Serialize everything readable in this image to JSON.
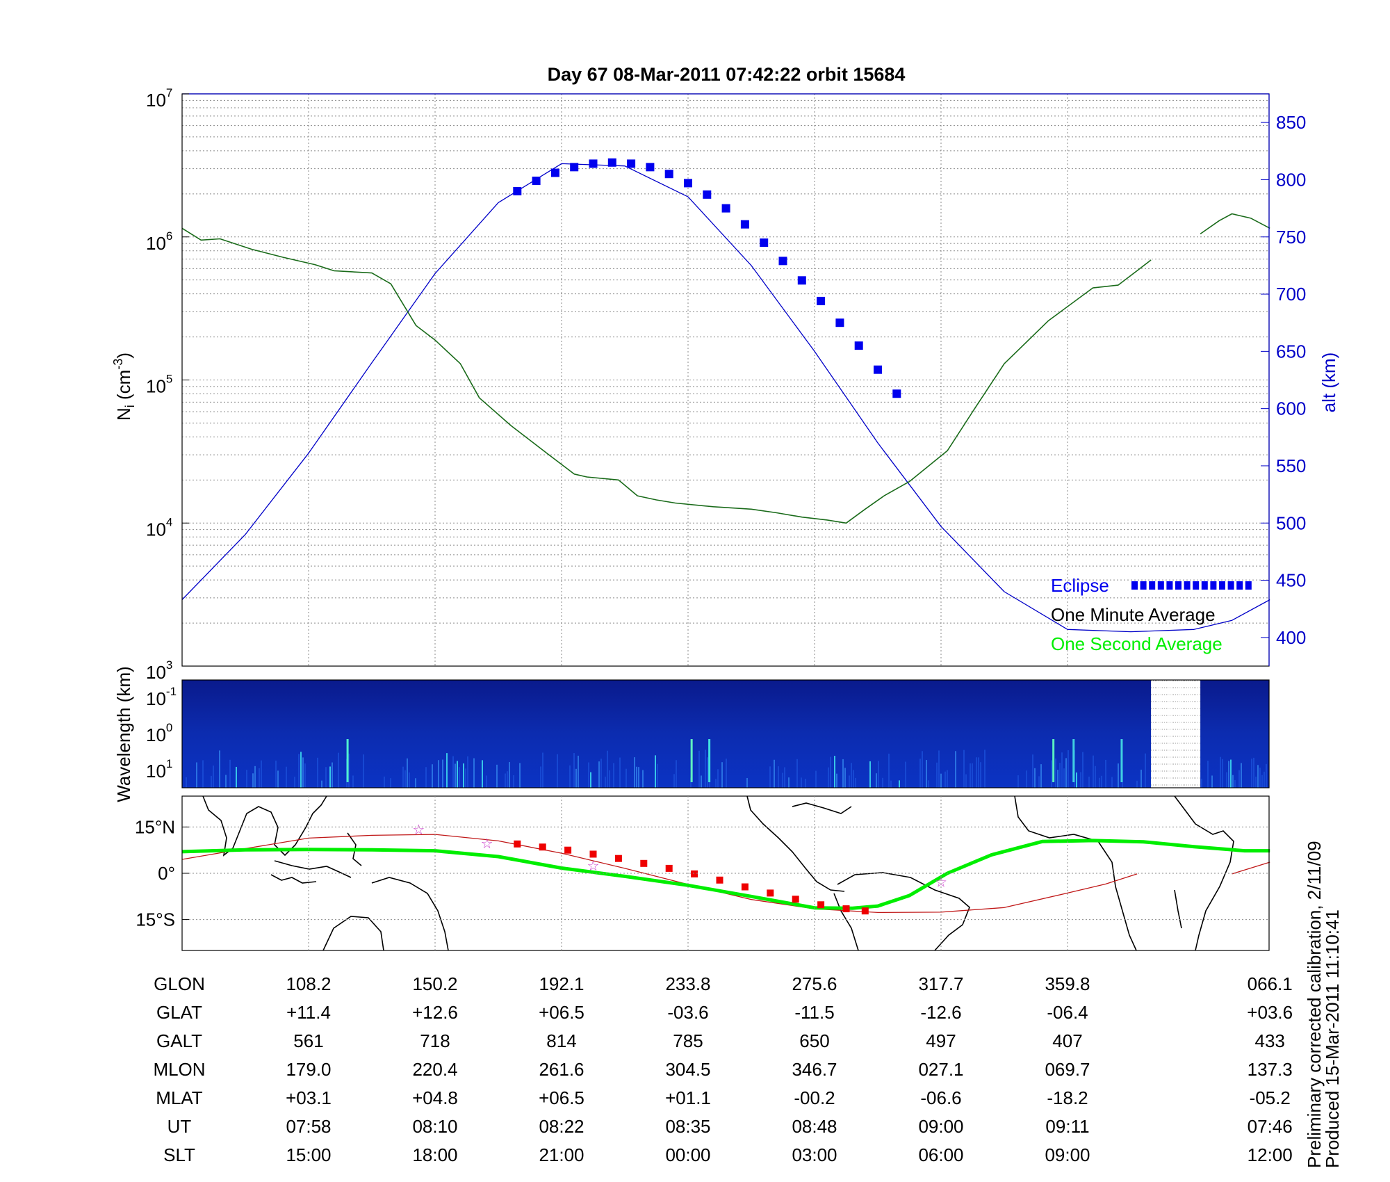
{
  "title": "Day 67  08-Mar-2011 07:42:22   orbit 15684",
  "footnote": {
    "line1": "Preliminary corrected calibration, 2/11/09",
    "line2": "Produced 15-Mar-2011 11:10:41"
  },
  "colors": {
    "density": "#1a6b1a",
    "altitude": "#0000c8",
    "eclipse": "#0000ee",
    "one_second": "#00ee00",
    "orbit_track": "#c01818",
    "map_eclipse": "#ee0000",
    "star": "#cc44cc"
  },
  "chart_data": [
    {
      "type": "line",
      "panel": "density",
      "title": "Day 67  08-Mar-2011 07:42:22   orbit 15684",
      "ylabel": "N_i (cm^-3)",
      "ylabel_main": "N",
      "ylabel_sub": "i",
      "ylabel_unit_open": " (cm",
      "ylabel_unit_exp": "-3",
      "ylabel_unit_close": ")",
      "yscale": "log",
      "ylim": [
        1000,
        10000000
      ],
      "y_ticks": [
        {
          "base": "10",
          "exp": "3",
          "value": 1000
        },
        {
          "base": "10",
          "exp": "4",
          "value": 10000
        },
        {
          "base": "10",
          "exp": "5",
          "value": 100000
        },
        {
          "base": "10",
          "exp": "6",
          "value": 1000000
        },
        {
          "base": "10",
          "exp": "7",
          "value": 10000000
        }
      ],
      "y2label": "alt (km)",
      "y2lim": [
        375,
        875
      ],
      "y2_ticks": [
        "400",
        "450",
        "500",
        "550",
        "600",
        "650",
        "700",
        "750",
        "800",
        "850"
      ],
      "grid": true,
      "xlim": [
        0,
        8.6
      ],
      "x_note": "x positions in units of the table column spacing (0 = left axis)",
      "legend": {
        "placement": "bottom-right",
        "entries": [
          {
            "label": "Eclipse",
            "style": "squares"
          },
          {
            "label": "One Minute Average",
            "style": "line"
          },
          {
            "label": "One Second Average",
            "style": "line"
          }
        ]
      },
      "series": [
        {
          "name": "One Minute Average",
          "x": [
            0,
            0.15,
            0.3,
            0.55,
            0.8,
            1.05,
            1.2,
            1.5,
            1.65,
            1.85,
            2.0,
            2.2,
            2.35,
            2.6,
            2.9,
            3.1,
            3.2,
            3.45,
            3.6,
            3.75,
            3.9,
            4.2,
            4.5,
            4.7,
            4.9,
            5.1,
            5.25,
            5.4,
            5.55,
            5.75,
            6.05,
            6.25,
            6.5,
            6.85,
            7.2,
            7.4,
            7.55,
            7.66
          ],
          "y": [
            1150000,
            950000,
            970000,
            820000,
            720000,
            640000,
            580000,
            560000,
            470000,
            240000,
            190000,
            130000,
            75000,
            48000,
            30000,
            22000,
            21000,
            20000,
            15500,
            14500,
            13800,
            13000,
            12500,
            11800,
            11000,
            10500,
            10000,
            12500,
            15500,
            19500,
            32000,
            60000,
            130000,
            260000,
            440000,
            460000,
            580000,
            690000
          ]
        },
        {
          "name": "One Minute Average (resumed)",
          "x": [
            8.05,
            8.2,
            8.3,
            8.45,
            8.6
          ],
          "y": [
            1050000,
            1300000,
            1450000,
            1350000,
            1150000
          ]
        },
        {
          "name": "Altitude",
          "axis": "y2",
          "x": [
            0,
            0.5,
            1.0,
            1.5,
            2.0,
            2.5,
            3.0,
            3.5,
            4.0,
            4.5,
            5.0,
            5.5,
            6.0,
            6.5,
            7.0,
            7.5,
            8.0,
            8.3,
            8.6
          ],
          "y": [
            433,
            490,
            561,
            640,
            718,
            780,
            814,
            812,
            785,
            725,
            650,
            570,
            497,
            440,
            407,
            405,
            407,
            415,
            433
          ]
        },
        {
          "name": "Eclipse",
          "axis": "y2",
          "x": [
            2.65,
            2.8,
            2.95,
            3.1,
            3.25,
            3.4,
            3.55,
            3.7,
            3.85,
            4.0,
            4.15,
            4.3,
            4.45,
            4.6,
            4.75,
            4.9,
            5.05,
            5.2,
            5.35,
            5.5,
            5.65
          ],
          "y": [
            790,
            799,
            806,
            811,
            814,
            815,
            814,
            811,
            805,
            797,
            787,
            775,
            761,
            745,
            729,
            712,
            694,
            675,
            655,
            634,
            613
          ]
        }
      ]
    },
    {
      "type": "heatmap",
      "panel": "spectrogram",
      "ylabel": "Wavelength (km)",
      "y_ticks": [
        {
          "base": "10",
          "exp": "-1"
        },
        {
          "base": "10",
          "exp": "0"
        },
        {
          "base": "10",
          "exp": "1"
        }
      ],
      "gap_x": [
        7.66,
        8.05
      ]
    },
    {
      "type": "line",
      "panel": "map",
      "y_ticks": [
        "15°N",
        "0°",
        "15°S"
      ],
      "ylim": [
        -25,
        25
      ],
      "series": [
        {
          "name": "One Second Average",
          "x": [
            0,
            0.5,
            1.0,
            1.5,
            2.0,
            2.5,
            3.0,
            3.5,
            4.0,
            4.5,
            5.0,
            5.3,
            5.5,
            5.75,
            6.05,
            6.4,
            6.8,
            7.2,
            7.6,
            8.0,
            8.4,
            8.6
          ],
          "y": [
            7,
            7.6,
            7.7,
            7.6,
            7.3,
            5.4,
            1.7,
            -1.0,
            -3.9,
            -7.5,
            -11.2,
            -11.3,
            -10.6,
            -7.2,
            0,
            6.0,
            10.3,
            10.6,
            10.2,
            8.6,
            7.3,
            7.3
          ]
        },
        {
          "name": "Orbit track",
          "x": [
            0,
            0.5,
            1.0,
            1.5,
            2.0,
            2.5,
            3.0,
            3.5,
            4.0,
            4.5,
            5.0,
            5.5,
            6.0,
            6.5,
            7.0,
            7.3,
            7.55
          ],
          "y": [
            4.5,
            8,
            11.4,
            12.3,
            12.6,
            10.5,
            6.5,
            1.6,
            -3.6,
            -8.5,
            -11.5,
            -12.7,
            -12.6,
            -11.1,
            -6.4,
            -3.5,
            -0.2
          ]
        },
        {
          "name": "Orbit track (resumed)",
          "x": [
            8.3,
            8.6
          ],
          "y": [
            -0.2,
            3.6
          ]
        },
        {
          "name": "Eclipse",
          "x": [
            2.65,
            2.85,
            3.05,
            3.25,
            3.45,
            3.65,
            3.85,
            4.05,
            4.25,
            4.45,
            4.65,
            4.85,
            5.05,
            5.25,
            5.4
          ],
          "y": [
            9.5,
            8.5,
            7.5,
            6.2,
            4.8,
            3.2,
            1.6,
            -0.2,
            -2.2,
            -4.4,
            -6.4,
            -8.4,
            -10.2,
            -11.5,
            -12.2
          ]
        }
      ],
      "stars": [
        {
          "x": 1.87,
          "y": 14.2
        },
        {
          "x": 2.41,
          "y": 9.7
        },
        {
          "x": 3.25,
          "y": 2.5
        },
        {
          "x": 6.0,
          "y": -2.8
        }
      ]
    }
  ],
  "table": {
    "row_labels": [
      "GLON",
      "GLAT",
      "GALT",
      "MLON",
      "MLAT",
      "UT",
      "SLT"
    ],
    "columns": [
      [
        "108.2",
        "+11.4",
        "561",
        "179.0",
        "+03.1",
        "07:58",
        "15:00"
      ],
      [
        "150.2",
        "+12.6",
        "718",
        "220.4",
        "+04.8",
        "08:10",
        "18:00"
      ],
      [
        "192.1",
        "+06.5",
        "814",
        "261.6",
        "+06.5",
        "08:22",
        "21:00"
      ],
      [
        "233.8",
        "-03.6",
        "785",
        "304.5",
        "+01.1",
        "08:35",
        "00:00"
      ],
      [
        "275.6",
        "-11.5",
        "650",
        "346.7",
        "-00.2",
        "08:48",
        "03:00"
      ],
      [
        "317.7",
        "-12.6",
        "497",
        "027.1",
        "-06.6",
        "09:00",
        "06:00"
      ],
      [
        "359.8",
        "-06.4",
        "407",
        "069.7",
        "-18.2",
        "09:11",
        "09:00"
      ],
      [
        "066.1",
        "+03.6",
        "433",
        "137.3",
        "-05.2",
        "07:46",
        "12:00"
      ]
    ],
    "column_x": [
      1,
      2,
      3,
      4,
      5,
      6,
      7,
      8.6
    ]
  }
}
